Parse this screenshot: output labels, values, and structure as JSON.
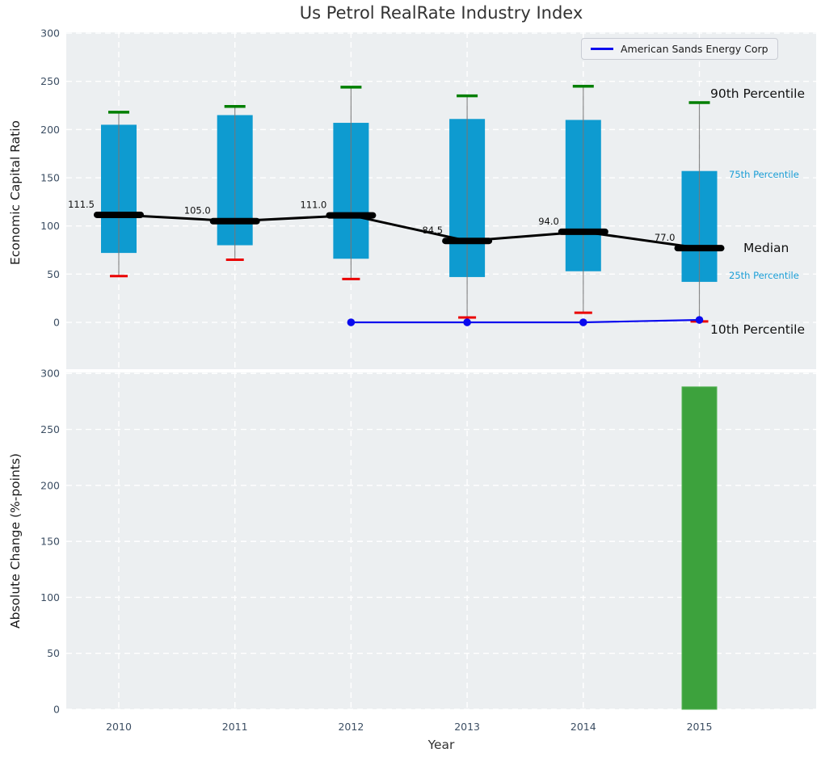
{
  "figure": {
    "title": "Us Petrol RealRate Industry Index",
    "legend": {
      "label": "American Sands Energy Corp"
    },
    "annotations": {
      "p90": "90th Percentile",
      "p75": "75th Percentile",
      "median": "Median",
      "p25": "25th Percentile",
      "p10": "10th Percentile"
    }
  },
  "style": {
    "plot_bg": "#eceff1",
    "grid_color": "#ffffff",
    "box_color": "#0e9bd0",
    "cap_top_color": "#007f00",
    "cap_bottom_color": "#ea0000",
    "whisker_color": "#777777",
    "median_color": "#000000",
    "company_color": "#0a0aee",
    "bar_color": "#3da23d",
    "tick_color": "#3c4e63",
    "axis_label_color": "#1a1a1a",
    "title_color": "#333333",
    "annotation_blue": "#1b9ed6"
  },
  "chart_data": [
    {
      "type": "boxplot+line",
      "title": "Us Petrol RealRate Industry Index",
      "xlabel": "Year",
      "ylabel": "Economic Capital Ratio",
      "ylim": [
        -48.6,
        300.9
      ],
      "yticks": [
        0,
        50,
        100,
        150,
        200,
        250,
        300
      ],
      "grid": true,
      "categories": [
        "2010",
        "2011",
        "2012",
        "2013",
        "2014",
        "2015"
      ],
      "percentiles": {
        "p90": [
          218,
          224,
          244,
          235,
          245,
          228
        ],
        "p75": [
          205,
          215,
          207,
          211,
          210,
          157
        ],
        "median": [
          111.5,
          105.0,
          111.0,
          84.5,
          94.0,
          77.0
        ],
        "p25": [
          72,
          80,
          66,
          47,
          53,
          42
        ],
        "p10": [
          48,
          65,
          45,
          5,
          10,
          1
        ]
      },
      "median_labels": [
        "111.5",
        "105.0",
        "111.0",
        "84.5",
        "94.0",
        "77.0"
      ],
      "company": {
        "name": "American Sands Energy Corp",
        "years": [
          "2012",
          "2013",
          "2014",
          "2015"
        ],
        "values": [
          0,
          0,
          0,
          2.5
        ]
      },
      "legend_position": "upper right"
    },
    {
      "type": "bar",
      "xlabel": "Year",
      "ylabel": "Absolute Change (%-points)",
      "ylim": [
        0,
        300.9
      ],
      "yticks": [
        0,
        50,
        100,
        150,
        200,
        250,
        300
      ],
      "grid": true,
      "categories": [
        "2010",
        "2011",
        "2012",
        "2013",
        "2014",
        "2015"
      ],
      "values": [
        null,
        null,
        null,
        null,
        null,
        288
      ]
    }
  ]
}
